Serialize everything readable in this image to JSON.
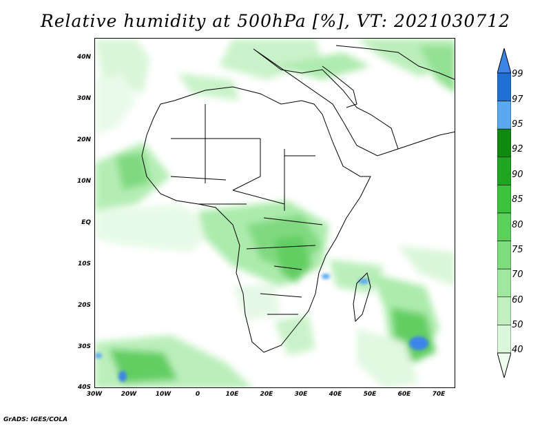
{
  "title": "Relative humidity at 500hPa [%], VT: 2021030712",
  "credit": "GrADS: IGES/COLA",
  "map": {
    "y_ticks": [
      "40N",
      "30N",
      "20N",
      "10N",
      "EQ",
      "10S",
      "20S",
      "30S",
      "40S"
    ],
    "x_ticks": [
      "30W",
      "20W",
      "10W",
      "0",
      "10E",
      "20E",
      "30E",
      "40E",
      "50E",
      "60E",
      "70E"
    ]
  },
  "colorbar": {
    "labels": [
      "99",
      "97",
      "95",
      "92",
      "90",
      "85",
      "80",
      "75",
      "70",
      "60",
      "50",
      "40"
    ],
    "colors": [
      "#3d84e8",
      "#1f6fd6",
      "#5aa8f0",
      "#0f8a0f",
      "#1fa51f",
      "#3cc23c",
      "#5ad25a",
      "#7ede7e",
      "#a0e8a0",
      "#c0f0c0",
      "#dcf8dc",
      "#eefcee"
    ]
  }
}
